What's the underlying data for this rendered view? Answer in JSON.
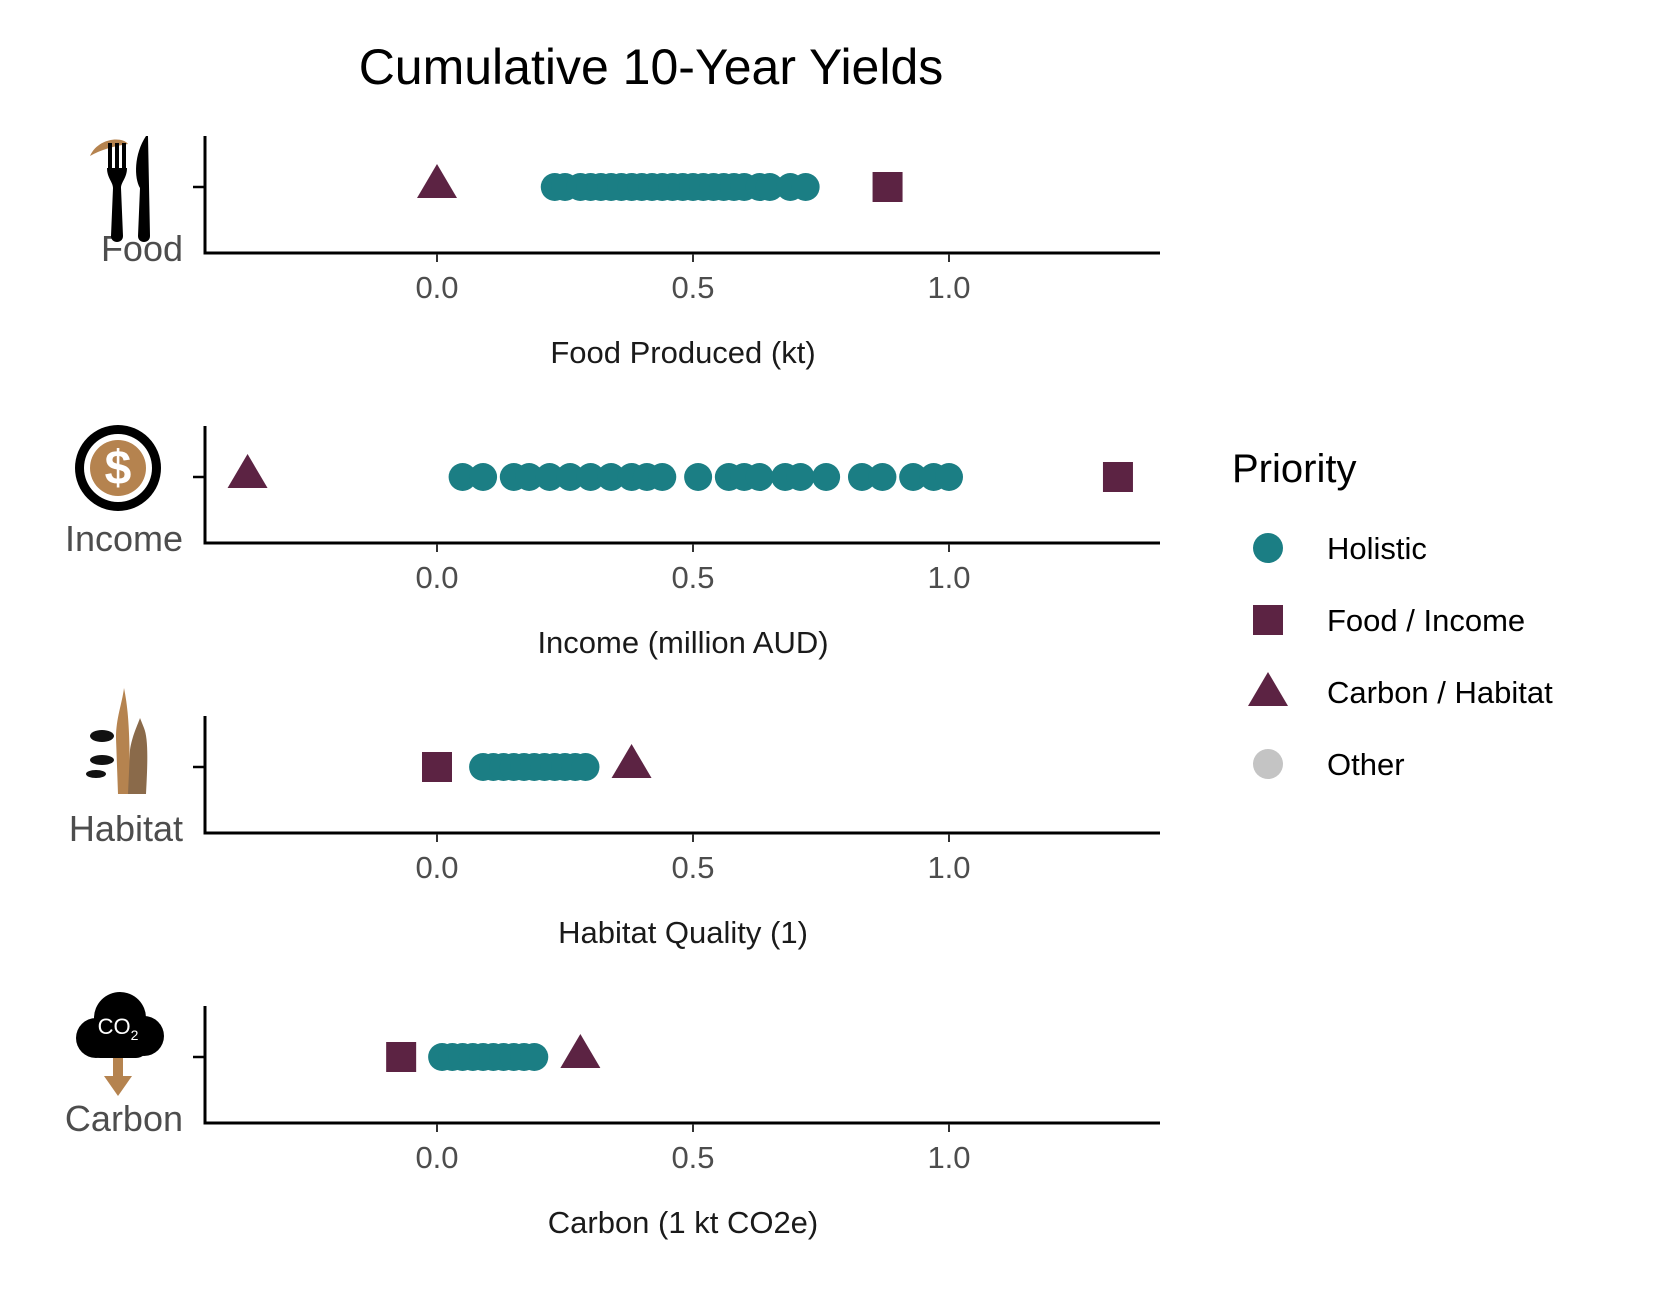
{
  "chart_data": {
    "type": "scatter",
    "title": "Cumulative 10-Year Yields",
    "colors": {
      "holistic": "#1b7e84",
      "food_income": "#5c2343",
      "carbon_habitat": "#5c2343",
      "other": "#c4c4c4",
      "icon_brown": "#b5834f",
      "icon_dark_brown": "#8a6a4a"
    },
    "legend": {
      "title": "Priority",
      "placement": "right",
      "entries": [
        {
          "key": "holistic",
          "label": "Holistic",
          "shape": "circle"
        },
        {
          "key": "food_income",
          "label": "Food / Income",
          "shape": "square"
        },
        {
          "key": "carbon_habitat",
          "label": "Carbon / Habitat",
          "shape": "triangle"
        },
        {
          "key": "other",
          "label": "Other",
          "shape": "circle"
        }
      ]
    },
    "xlim": [
      -0.45,
      1.4
    ],
    "x_ticks": [
      "0.0",
      "0.5",
      "1.0"
    ],
    "x_tick_values": [
      0.0,
      0.5,
      1.0
    ],
    "panels": [
      {
        "id": "food",
        "ylabel": "Food",
        "xlabel": "Food Produced (kt)",
        "icon": "fork-knife-icon",
        "holistic": [
          0.23,
          0.25,
          0.28,
          0.3,
          0.32,
          0.34,
          0.36,
          0.38,
          0.4,
          0.42,
          0.44,
          0.46,
          0.48,
          0.5,
          0.52,
          0.54,
          0.56,
          0.58,
          0.6,
          0.63,
          0.65,
          0.69,
          0.72
        ],
        "food_income": [
          0.88
        ],
        "carbon_habitat": [
          0.0
        ]
      },
      {
        "id": "income",
        "ylabel": "Income",
        "xlabel": "Income (million AUD)",
        "icon": "dollar-coin-icon",
        "holistic": [
          0.05,
          0.09,
          0.15,
          0.18,
          0.22,
          0.26,
          0.3,
          0.34,
          0.38,
          0.41,
          0.44,
          0.51,
          0.57,
          0.6,
          0.63,
          0.68,
          0.71,
          0.76,
          0.83,
          0.87,
          0.93,
          0.97,
          1.0
        ],
        "food_income": [
          1.33
        ],
        "carbon_habitat": [
          -0.37
        ]
      },
      {
        "id": "habitat",
        "ylabel": "Habitat",
        "xlabel": "Habitat Quality (1)",
        "icon": "wildlife-habitat-icon",
        "holistic": [
          0.09,
          0.11,
          0.13,
          0.15,
          0.17,
          0.19,
          0.21,
          0.23,
          0.25,
          0.27,
          0.29
        ],
        "food_income": [
          0.0
        ],
        "carbon_habitat": [
          0.38
        ]
      },
      {
        "id": "carbon",
        "ylabel": "Carbon",
        "xlabel": "Carbon (1 kt CO2e)",
        "icon": "co2-cloud-icon",
        "icon_text": "CO",
        "icon_subscript": "2",
        "holistic": [
          0.01,
          0.03,
          0.05,
          0.07,
          0.09,
          0.11,
          0.13,
          0.15,
          0.17,
          0.19
        ],
        "food_income": [
          -0.07
        ],
        "carbon_habitat": [
          0.28
        ]
      }
    ]
  }
}
